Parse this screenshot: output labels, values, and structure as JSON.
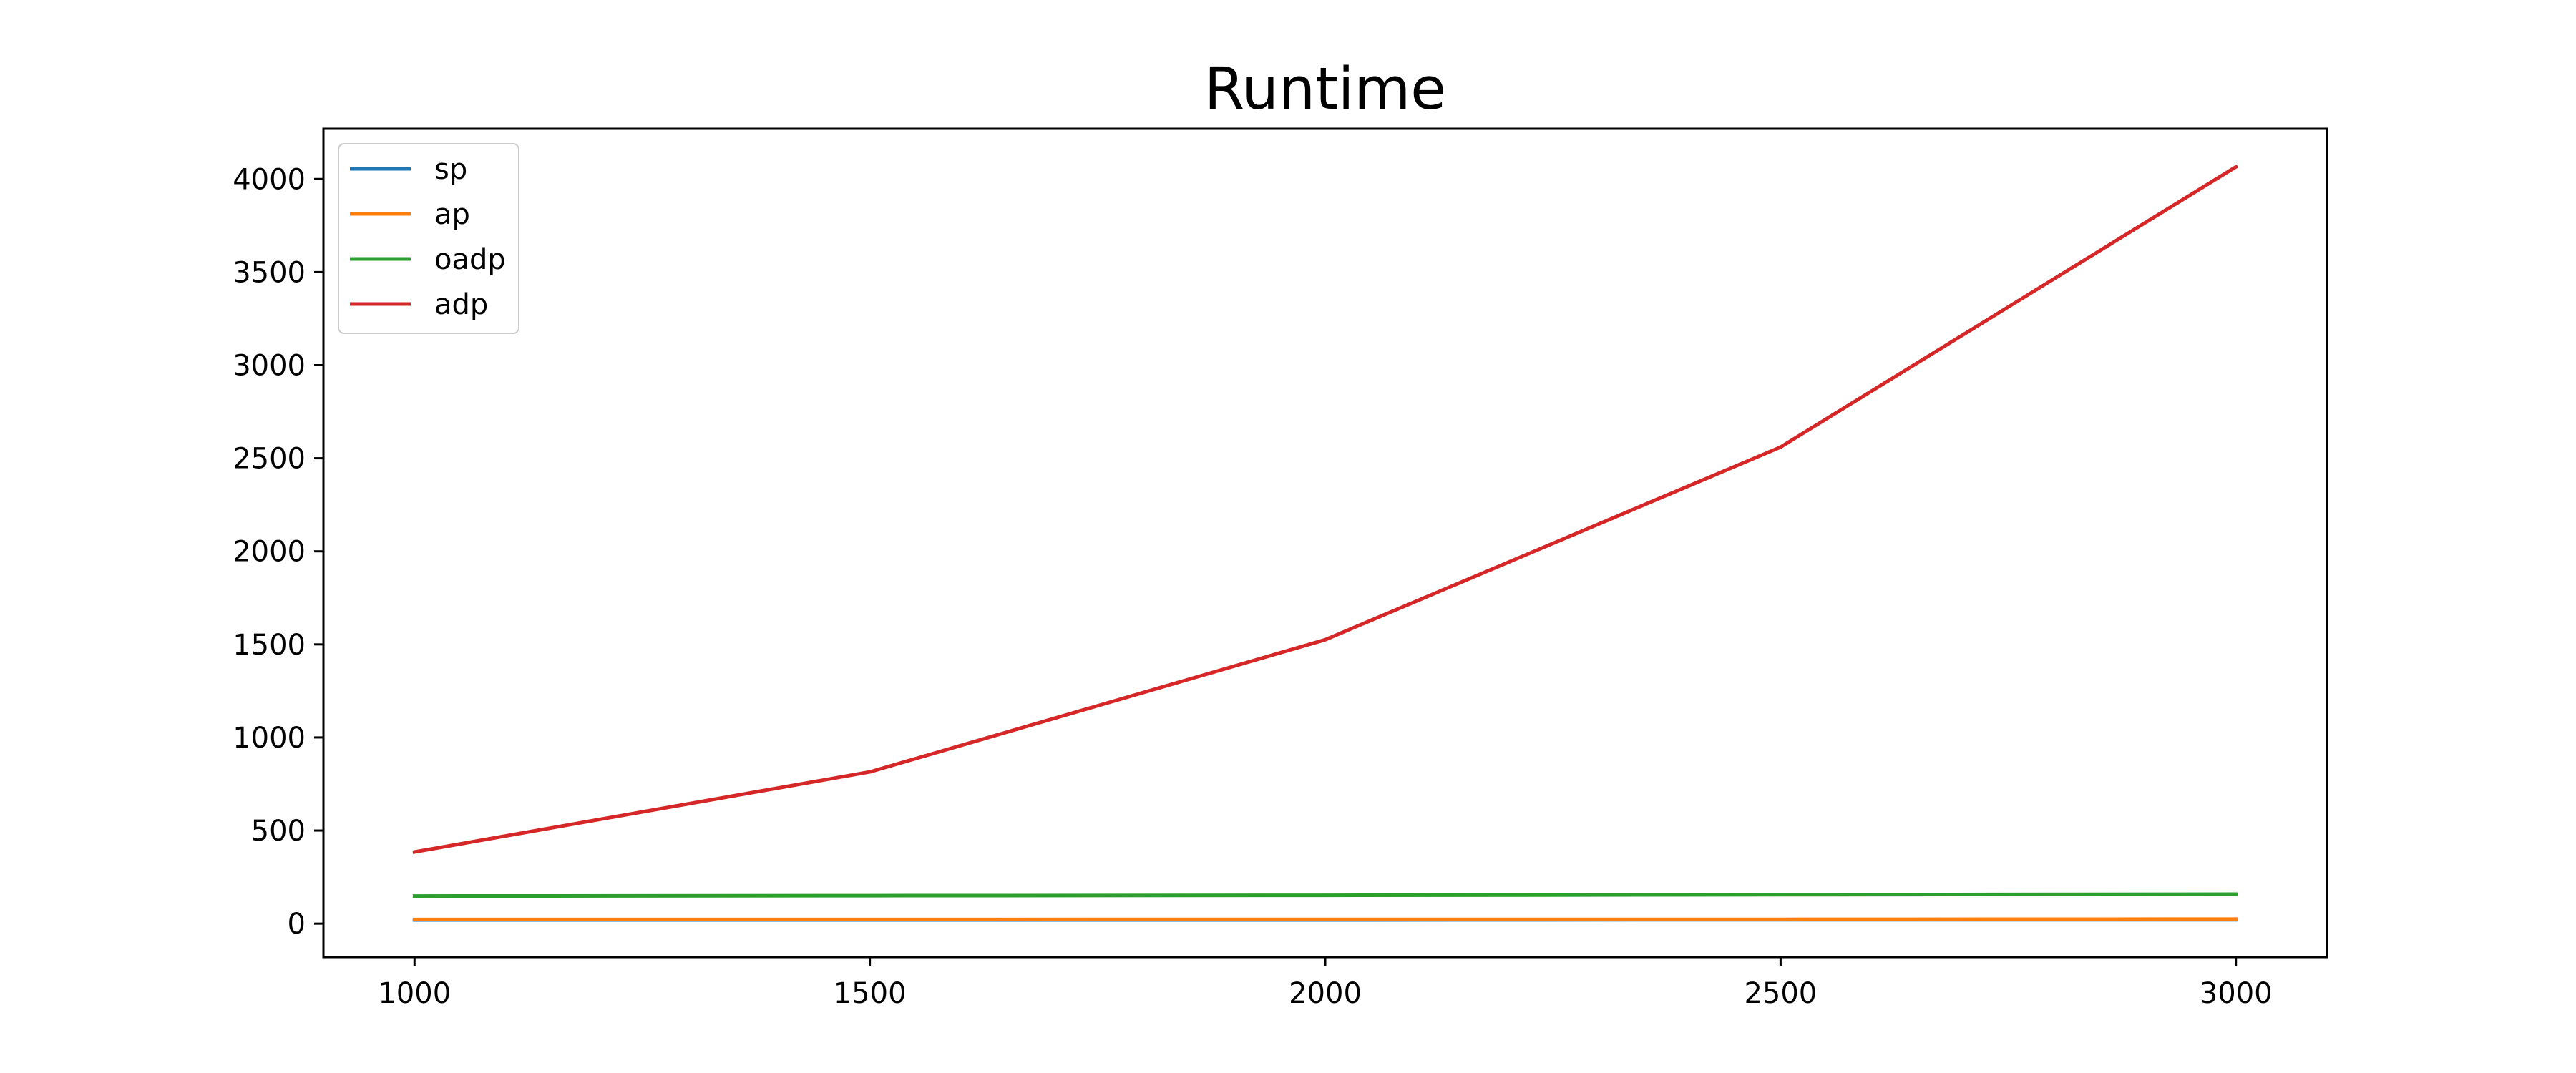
{
  "chart_data": {
    "type": "line",
    "title": "Runtime",
    "xlabel": "",
    "ylabel": "",
    "x": [
      1000,
      1500,
      2000,
      2500,
      3000
    ],
    "xticks": [
      "1000",
      "1500",
      "2000",
      "2500",
      "3000"
    ],
    "yticks": [
      "0",
      "500",
      "1000",
      "1500",
      "2000",
      "2500",
      "3000",
      "3500",
      "4000"
    ],
    "xlim": [
      900,
      3100
    ],
    "ylim": [
      -180,
      4270
    ],
    "grid": false,
    "legend_position": "top-left",
    "series": [
      {
        "name": "sp",
        "color": "#1f77b4",
        "values": [
          20,
          20,
          20,
          21,
          21
        ]
      },
      {
        "name": "ap",
        "color": "#ff7f0e",
        "values": [
          22,
          22,
          23,
          23,
          24
        ]
      },
      {
        "name": "oadp",
        "color": "#2ca02c",
        "values": [
          148,
          150,
          152,
          155,
          158
        ]
      },
      {
        "name": "adp",
        "color": "#d62728",
        "values": [
          385,
          815,
          1525,
          2560,
          4065
        ]
      }
    ]
  }
}
